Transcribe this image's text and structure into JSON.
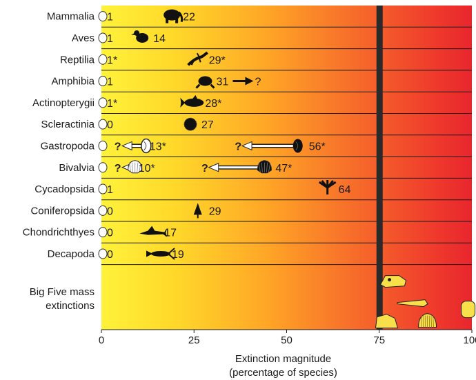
{
  "chart_data": {
    "type": "scatter",
    "xlabel": [
      "Extinction magnitude",
      "(percentage of species)"
    ],
    "xlim": [
      0,
      100
    ],
    "xticks": [
      0,
      25,
      50,
      75,
      100
    ],
    "gradient_colors": [
      "#fff23a",
      "#ffd82a",
      "#ffa526",
      "#f8742a",
      "#ef3a2c",
      "#e8262d"
    ],
    "threshold_line": {
      "x": 75,
      "color": "#2a2a2a"
    },
    "rows": [
      {
        "group": "Mammalia",
        "recent": "1",
        "projected": "22",
        "icon": "mammoth-icon"
      },
      {
        "group": "Aves",
        "recent": "1",
        "projected": "14",
        "icon": "dodo-icon"
      },
      {
        "group": "Reptilia",
        "recent": "1*",
        "projected": "29*",
        "icon": "lizard-icon"
      },
      {
        "group": "Amphibia",
        "recent": "1",
        "projected": "31",
        "icon": "frog-icon",
        "arrow_right": "?"
      },
      {
        "group": "Actinopterygii",
        "recent": "1*",
        "projected": "28*",
        "icon": "tuna-icon"
      },
      {
        "group": "Scleractinia",
        "recent": "0",
        "projected": "27",
        "icon": "coral-icon"
      },
      {
        "group": "Gastropoda",
        "recent": "?",
        "recent2": "13*",
        "projected": "56*",
        "projected_from": "?",
        "icon": "snail-icon"
      },
      {
        "group": "Bivalvia",
        "recent": "?",
        "recent2": "10*",
        "projected": "47*",
        "projected_from": "?",
        "icon": "scallop-icon"
      },
      {
        "group": "Cycadopsida",
        "recent": "1",
        "projected": "64",
        "icon": "cycad-icon"
      },
      {
        "group": "Coniferopsida",
        "recent": "0",
        "projected": "29",
        "icon": "conifer-icon"
      },
      {
        "group": "Chondrichthyes",
        "recent": "0",
        "projected": "17",
        "icon": "shark-icon"
      },
      {
        "group": "Decapoda",
        "recent": "0",
        "projected": "19",
        "icon": "crayfish-icon"
      }
    ],
    "big_five": {
      "label": [
        "Big Five mass",
        "extinctions"
      ],
      "icons": [
        "trex-skull-icon",
        "ichthyosaur-skull-icon",
        "dinosaur-icon",
        "shell-icon",
        "trilobite-icon"
      ]
    }
  }
}
